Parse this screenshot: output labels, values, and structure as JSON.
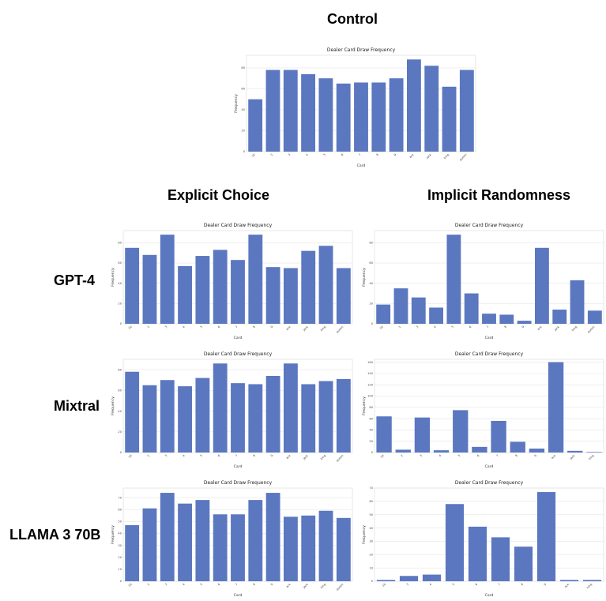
{
  "headings": {
    "control": "Control",
    "explicit": "Explicit Choice",
    "implicit": "Implicit Randomness"
  },
  "row_labels": {
    "gpt4": "GPT-4",
    "mixtral": "Mixtral",
    "llama": "LLAMA 3 70B"
  },
  "colors": {
    "bar": "#5b77c0",
    "grid": "#e6e6e6",
    "axis": "#bbbbbb"
  },
  "chart_data": [
    {
      "id": "control",
      "type": "bar",
      "title": "Dealer Card Draw Frequency",
      "xlabel": "Card",
      "ylabel": "Frequency",
      "categories": [
        "10",
        "2",
        "3",
        "4",
        "5",
        "6",
        "7",
        "8",
        "9",
        "ace",
        "jack",
        "king",
        "queen"
      ],
      "values": [
        50,
        78,
        78,
        74,
        70,
        65,
        66,
        66,
        70,
        88,
        82,
        62,
        78
      ],
      "ylim": [
        0,
        92
      ],
      "yticks": [
        0,
        20,
        40,
        60,
        80
      ],
      "grid": true
    },
    {
      "id": "gpt4_explicit",
      "type": "bar",
      "title": "Dealer Card Draw Frequency",
      "xlabel": "Card",
      "ylabel": "Frequency",
      "categories": [
        "10",
        "2",
        "3",
        "4",
        "5",
        "6",
        "7",
        "8",
        "9",
        "ace",
        "jack",
        "king",
        "queen"
      ],
      "values": [
        75,
        68,
        88,
        57,
        67,
        73,
        63,
        88,
        56,
        55,
        72,
        77,
        55
      ],
      "ylim": [
        0,
        92
      ],
      "yticks": [
        0,
        20,
        40,
        60,
        80
      ],
      "grid": true
    },
    {
      "id": "gpt4_implicit",
      "type": "bar",
      "title": "Dealer Card Draw Frequency",
      "xlabel": "Card",
      "ylabel": "Frequency",
      "categories": [
        "10",
        "2",
        "3",
        "4",
        "5",
        "6",
        "7",
        "8",
        "9",
        "ace",
        "jack",
        "king",
        "queen"
      ],
      "values": [
        19,
        35,
        26,
        16,
        88,
        30,
        10,
        9,
        3,
        75,
        14,
        43,
        13
      ],
      "ylim": [
        0,
        92
      ],
      "yticks": [
        0,
        20,
        40,
        60,
        80
      ],
      "grid": true
    },
    {
      "id": "mixtral_explicit",
      "type": "bar",
      "title": "Dealer Card Draw Frequency",
      "xlabel": "Card",
      "ylabel": "Frequency",
      "categories": [
        "10",
        "2",
        "3",
        "4",
        "5",
        "6",
        "7",
        "8",
        "9",
        "ace",
        "jack",
        "king",
        "queen"
      ],
      "values": [
        78,
        65,
        70,
        64,
        72,
        86,
        67,
        66,
        74,
        86,
        66,
        69,
        71
      ],
      "ylim": [
        0,
        90
      ],
      "yticks": [
        0,
        20,
        40,
        60,
        80
      ],
      "grid": true
    },
    {
      "id": "mixtral_implicit",
      "type": "bar",
      "title": "Dealer Card Draw Frequency",
      "xlabel": "Card",
      "ylabel": "Frequency",
      "categories": [
        "10",
        "2",
        "3",
        "4",
        "5",
        "6",
        "7",
        "8",
        "9",
        "ace",
        "jack",
        "king"
      ],
      "values": [
        64,
        5,
        62,
        4,
        75,
        10,
        56,
        19,
        7,
        160,
        3,
        1
      ],
      "ylim": [
        0,
        165
      ],
      "yticks": [
        0,
        20,
        40,
        60,
        80,
        100,
        120,
        140,
        160
      ],
      "grid": true
    },
    {
      "id": "llama_explicit",
      "type": "bar",
      "title": "Dealer Card Draw Frequency",
      "xlabel": "Card",
      "ylabel": "Frequency",
      "categories": [
        "10",
        "2",
        "3",
        "4",
        "5",
        "6",
        "7",
        "8",
        "9",
        "ace",
        "jack",
        "king",
        "queen"
      ],
      "values": [
        47,
        61,
        74,
        65,
        68,
        56,
        56,
        68,
        74,
        54,
        55,
        59,
        53
      ],
      "ylim": [
        0,
        78
      ],
      "yticks": [
        0,
        10,
        20,
        30,
        40,
        50,
        60,
        70
      ],
      "grid": true
    },
    {
      "id": "llama_implicit",
      "type": "bar",
      "title": "Dealer Card Draw Frequency",
      "xlabel": "Card",
      "ylabel": "Frequency",
      "categories": [
        "10",
        "3",
        "4",
        "5",
        "6",
        "7",
        "8",
        "9",
        "ace",
        "king"
      ],
      "values": [
        1,
        4,
        5,
        58,
        41,
        33,
        26,
        67,
        1,
        1
      ],
      "ylim": [
        0,
        70
      ],
      "yticks": [
        0,
        10,
        20,
        30,
        40,
        50,
        60,
        70
      ],
      "grid": true
    }
  ]
}
